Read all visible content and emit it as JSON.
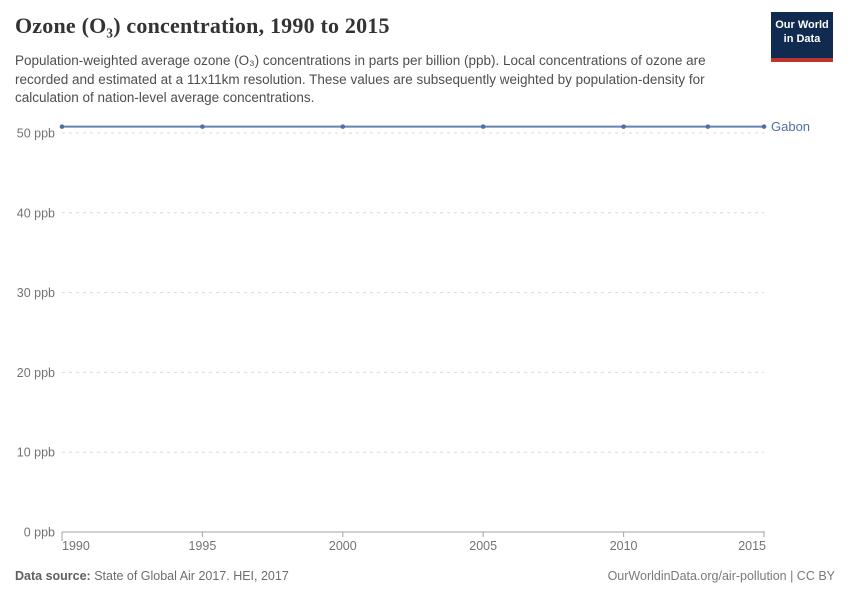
{
  "header": {
    "title": "Ozone (O₃) concentration, 1990 to 2015",
    "subtitle": "Population-weighted average ozone (O₃) concentrations in parts per billion (ppb). Local concentrations of ozone are recorded and estimated at a 11x11km resolution. These values are subsequently weighted by population-density for calculation of nation-level average concentrations.",
    "logo": {
      "line1": "Our World",
      "line2": "in Data",
      "bg_color": "#102a50",
      "stripe_color": "#bd332d"
    }
  },
  "chart_data": {
    "type": "line",
    "title": "Ozone (O₃) concentration, 1990 to 2015",
    "unit": "ppb",
    "x": [
      1990,
      1995,
      2000,
      2005,
      2010,
      2013,
      2015
    ],
    "series": [
      {
        "name": "Gabon",
        "color": "#4e6fa6",
        "line_color": "#6583b1",
        "values": [
          50.8,
          50.8,
          50.8,
          50.8,
          50.8,
          50.8,
          50.8
        ]
      }
    ],
    "xlim": [
      1990,
      2015
    ],
    "ylim": [
      0,
      50
    ],
    "yticks": [
      0,
      10,
      20,
      30,
      40,
      50
    ],
    "ytick_labels": [
      "0 ppb",
      "10 ppb",
      "20 ppb",
      "30 ppb",
      "40 ppb",
      "50 ppb"
    ],
    "xticks": [
      1990,
      1995,
      2000,
      2005,
      2010,
      2015
    ],
    "xtick_labels": [
      "1990",
      "1995",
      "2000",
      "2005",
      "2010",
      "2015"
    ],
    "grid": "horizontal-dashed",
    "grid_color": "#d9d9d9",
    "axis_color": "#a3a3a3",
    "tick_text_color": "#737373",
    "legend_position": "end-of-line"
  },
  "footer": {
    "data_source_label": "Data source:",
    "data_source_value": "State of Global Air 2017. HEI, 2017",
    "attribution": "OurWorldinData.org/air-pollution | CC BY"
  }
}
